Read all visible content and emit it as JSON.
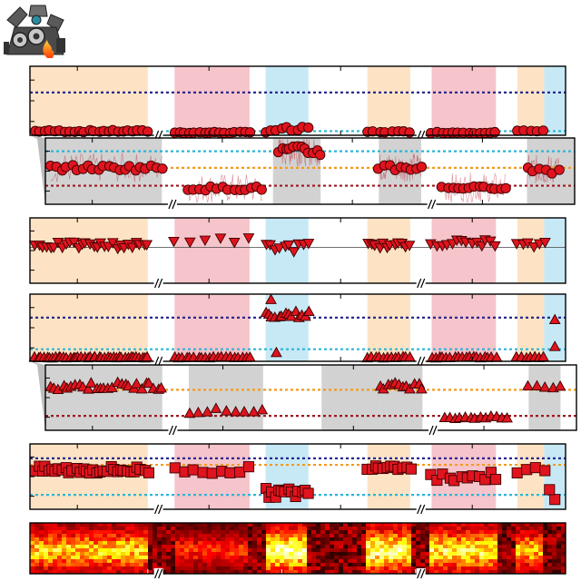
{
  "logo": {
    "icon": "robot-head-icon",
    "flame_color": "#ff5a1e"
  },
  "colors": {
    "band_orange": "#fde3c4",
    "band_red": "#f6c4cb",
    "band_blue": "#c7e9f6",
    "band_gray": "#d2d2d2",
    "marker_fill": "#e0141e",
    "marker_edge": "#3a0000",
    "navy_line": "#2a2a8e",
    "orange_line": "#f39a1e",
    "cyan_line": "#2ab6d6",
    "darkred_line": "#a01820",
    "trace": "#c03040"
  },
  "chart_data": [
    {
      "type": "scatter",
      "panel": "circles",
      "marker": "circle",
      "grid": false,
      "legend": "none",
      "axis_break_marks": 2,
      "xlim": [
        0,
        1
      ],
      "ylim": [
        0,
        1
      ],
      "shaded_segments": [
        {
          "x": [
            0,
            0.22
          ],
          "color": "orange"
        },
        {
          "x": [
            0.27,
            0.41
          ],
          "color": "red"
        },
        {
          "x": [
            0.44,
            0.52
          ],
          "color": "blue"
        },
        {
          "x": [
            0.63,
            0.71
          ],
          "color": "orange"
        },
        {
          "x": [
            0.75,
            0.87
          ],
          "color": "red"
        },
        {
          "x": [
            0.91,
            0.96
          ],
          "color": "orange"
        },
        {
          "x": [
            0.96,
            1.0
          ],
          "color": "blue"
        }
      ],
      "reference_lines": [
        {
          "y": 0.62,
          "color": "navy"
        },
        {
          "y": 0.06,
          "color": "cyan"
        }
      ],
      "segments": [
        {
          "x": [
            0.01,
            0.22
          ],
          "count": 24,
          "y_mean": 0.06,
          "y_spread": 0.015
        },
        {
          "x": [
            0.27,
            0.41
          ],
          "count": 16,
          "y_mean": 0.04,
          "y_spread": 0.01
        },
        {
          "x": [
            0.44,
            0.52
          ],
          "count": 9,
          "y_mean": 0.08,
          "y_spread": 0.04
        },
        {
          "x": [
            0.63,
            0.71
          ],
          "count": 8,
          "y_mean": 0.05,
          "y_spread": 0.01
        },
        {
          "x": [
            0.75,
            0.87
          ],
          "count": 13,
          "y_mean": 0.04,
          "y_spread": 0.01
        },
        {
          "x": [
            0.91,
            0.96
          ],
          "count": 5,
          "y_mean": 0.06,
          "y_spread": 0.01
        }
      ]
    },
    {
      "type": "scatter",
      "panel": "circles-inset",
      "marker": "circle",
      "background_trace": true,
      "grid": false,
      "legend": "none",
      "axis_break_marks": 2,
      "xlim": [
        0,
        1
      ],
      "ylim": [
        0,
        1
      ],
      "shaded_segments": [
        {
          "x": [
            0.0,
            0.22
          ],
          "color": "gray"
        },
        {
          "x": [
            0.43,
            0.52
          ],
          "color": "gray"
        },
        {
          "x": [
            0.63,
            0.71
          ],
          "color": "gray"
        },
        {
          "x": [
            0.91,
            1.0
          ],
          "color": "gray"
        }
      ],
      "reference_lines": [
        {
          "y": 0.8,
          "color": "cyan"
        },
        {
          "y": 0.55,
          "color": "orange"
        },
        {
          "y": 0.28,
          "color": "darkred"
        }
      ],
      "segments": [
        {
          "x": [
            0.01,
            0.22
          ],
          "count": 22,
          "y_mean": 0.55,
          "y_spread": 0.04
        },
        {
          "x": [
            0.27,
            0.41
          ],
          "count": 14,
          "y_mean": 0.24,
          "y_spread": 0.03
        },
        {
          "x": [
            0.44,
            0.52
          ],
          "count": 12,
          "y_mean": 0.8,
          "y_spread": 0.08
        },
        {
          "x": [
            0.63,
            0.71
          ],
          "count": 9,
          "y_mean": 0.56,
          "y_spread": 0.06
        },
        {
          "x": [
            0.75,
            0.87
          ],
          "count": 13,
          "y_mean": 0.25,
          "y_spread": 0.02
        },
        {
          "x": [
            0.91,
            0.97
          ],
          "count": 6,
          "y_mean": 0.52,
          "y_spread": 0.06
        }
      ]
    },
    {
      "type": "scatter",
      "panel": "down-triangles",
      "marker": "triangle-down",
      "grid": false,
      "legend": "none",
      "axis_break_marks": 2,
      "xlim": [
        0,
        1
      ],
      "ylim": [
        0,
        1
      ],
      "shaded_segments": [
        {
          "x": [
            0,
            0.22
          ],
          "color": "orange"
        },
        {
          "x": [
            0.27,
            0.41
          ],
          "color": "red"
        },
        {
          "x": [
            0.44,
            0.52
          ],
          "color": "blue"
        },
        {
          "x": [
            0.63,
            0.71
          ],
          "color": "orange"
        },
        {
          "x": [
            0.75,
            0.87
          ],
          "color": "red"
        },
        {
          "x": [
            0.91,
            0.96
          ],
          "color": "orange"
        },
        {
          "x": [
            0.96,
            1.0
          ],
          "color": "blue"
        }
      ],
      "reference_lines": [
        {
          "y": 0.55,
          "color": "gray"
        }
      ],
      "segments": [
        {
          "x": [
            0.01,
            0.22
          ],
          "count": 30,
          "y_mean": 0.58,
          "y_spread": 0.05
        },
        {
          "x": [
            0.27,
            0.41
          ],
          "count": 6,
          "y_mean": 0.66,
          "y_spread": 0.04
        },
        {
          "x": [
            0.44,
            0.52
          ],
          "count": 10,
          "y_mean": 0.55,
          "y_spread": 0.07
        },
        {
          "x": [
            0.63,
            0.71
          ],
          "count": 12,
          "y_mean": 0.58,
          "y_spread": 0.04
        },
        {
          "x": [
            0.75,
            0.87
          ],
          "count": 14,
          "y_mean": 0.62,
          "y_spread": 0.05
        },
        {
          "x": [
            0.91,
            0.96
          ],
          "count": 6,
          "y_mean": 0.58,
          "y_spread": 0.05
        }
      ]
    },
    {
      "type": "scatter",
      "panel": "up-triangles",
      "marker": "triangle-up",
      "grid": false,
      "legend": "none",
      "axis_break_marks": 2,
      "xlim": [
        0,
        1
      ],
      "ylim": [
        0,
        1
      ],
      "shaded_segments": [
        {
          "x": [
            0,
            0.22
          ],
          "color": "orange"
        },
        {
          "x": [
            0.27,
            0.41
          ],
          "color": "red"
        },
        {
          "x": [
            0.44,
            0.52
          ],
          "color": "blue"
        },
        {
          "x": [
            0.63,
            0.71
          ],
          "color": "orange"
        },
        {
          "x": [
            0.75,
            0.87
          ],
          "color": "red"
        },
        {
          "x": [
            0.91,
            0.96
          ],
          "color": "orange"
        },
        {
          "x": [
            0.96,
            1.0
          ],
          "color": "blue"
        }
      ],
      "reference_lines": [
        {
          "y": 0.65,
          "color": "navy"
        },
        {
          "y": 0.18,
          "color": "cyan"
        }
      ],
      "segments": [
        {
          "x": [
            0.01,
            0.22
          ],
          "count": 40,
          "y_mean": 0.06,
          "y_spread": 0.01
        },
        {
          "x": [
            0.27,
            0.41
          ],
          "count": 20,
          "y_mean": 0.06,
          "y_spread": 0.01
        },
        {
          "x": [
            0.44,
            0.52
          ],
          "count": 14,
          "y_mean": 0.7,
          "y_spread": 0.05
        },
        {
          "x": [
            0.63,
            0.71
          ],
          "count": 12,
          "y_mean": 0.06,
          "y_spread": 0.01
        },
        {
          "x": [
            0.75,
            0.87
          ],
          "count": 18,
          "y_mean": 0.06,
          "y_spread": 0.01
        },
        {
          "x": [
            0.91,
            0.96
          ],
          "count": 7,
          "y_mean": 0.06,
          "y_spread": 0.01
        }
      ],
      "outliers": [
        {
          "x": 0.45,
          "y": 0.92
        },
        {
          "x": 0.46,
          "y": 0.13
        },
        {
          "x": 0.98,
          "y": 0.62
        },
        {
          "x": 0.98,
          "y": 0.22
        }
      ]
    },
    {
      "type": "scatter",
      "panel": "up-triangles-inset",
      "marker": "triangle-up",
      "grid": false,
      "legend": "none",
      "axis_break_marks": 2,
      "xlim": [
        0,
        1
      ],
      "ylim": [
        0,
        1
      ],
      "shaded_segments": [
        {
          "x": [
            0,
            0.22
          ],
          "color": "gray"
        },
        {
          "x": [
            0.27,
            0.41
          ],
          "color": "gray"
        },
        {
          "x": [
            0.52,
            0.63
          ],
          "color": "gray"
        },
        {
          "x": [
            0.63,
            0.71
          ],
          "color": "gray"
        },
        {
          "x": [
            0.91,
            0.97
          ],
          "color": "gray"
        }
      ],
      "reference_lines": [
        {
          "y": 0.62,
          "color": "orange"
        },
        {
          "y": 0.22,
          "color": "darkred"
        }
      ],
      "segments": [
        {
          "x": [
            0.01,
            0.22
          ],
          "count": 28,
          "y_mean": 0.68,
          "y_spread": 0.06
        },
        {
          "x": [
            0.27,
            0.41
          ],
          "count": 9,
          "y_mean": 0.3,
          "y_spread": 0.04
        },
        {
          "x": [
            0.63,
            0.71
          ],
          "count": 12,
          "y_mean": 0.68,
          "y_spread": 0.05
        },
        {
          "x": [
            0.75,
            0.87
          ],
          "count": 13,
          "y_mean": 0.2,
          "y_spread": 0.02
        },
        {
          "x": [
            0.91,
            0.97
          ],
          "count": 5,
          "y_mean": 0.68,
          "y_spread": 0.04
        }
      ]
    },
    {
      "type": "scatter",
      "panel": "squares",
      "marker": "square",
      "grid": false,
      "legend": "none",
      "axis_break_marks": 2,
      "xlim": [
        0,
        1
      ],
      "ylim": [
        0,
        1
      ],
      "shaded_segments": [
        {
          "x": [
            0,
            0.22
          ],
          "color": "orange"
        },
        {
          "x": [
            0.27,
            0.41
          ],
          "color": "red"
        },
        {
          "x": [
            0.44,
            0.52
          ],
          "color": "blue"
        },
        {
          "x": [
            0.63,
            0.71
          ],
          "color": "orange"
        },
        {
          "x": [
            0.75,
            0.87
          ],
          "color": "red"
        },
        {
          "x": [
            0.91,
            0.96
          ],
          "color": "orange"
        },
        {
          "x": [
            0.96,
            1.0
          ],
          "color": "blue"
        }
      ],
      "reference_lines": [
        {
          "y": 0.78,
          "color": "navy"
        },
        {
          "y": 0.68,
          "color": "orange"
        },
        {
          "y": 0.22,
          "color": "cyan"
        }
      ],
      "segments": [
        {
          "x": [
            0.01,
            0.22
          ],
          "count": 34,
          "y_mean": 0.6,
          "y_spread": 0.06
        },
        {
          "x": [
            0.27,
            0.41
          ],
          "count": 9,
          "y_mean": 0.6,
          "y_spread": 0.06
        },
        {
          "x": [
            0.44,
            0.52
          ],
          "count": 14,
          "y_mean": 0.25,
          "y_spread": 0.07
        },
        {
          "x": [
            0.63,
            0.71
          ],
          "count": 12,
          "y_mean": 0.66,
          "y_spread": 0.05
        },
        {
          "x": [
            0.75,
            0.87
          ],
          "count": 12,
          "y_mean": 0.5,
          "y_spread": 0.07
        },
        {
          "x": [
            0.91,
            0.96
          ],
          "count": 4,
          "y_mean": 0.6,
          "y_spread": 0.05
        }
      ],
      "outliers": [
        {
          "x": 0.98,
          "y": 0.15
        },
        {
          "x": 0.97,
          "y": 0.3
        }
      ]
    },
    {
      "type": "heatmap",
      "panel": "spectrogram",
      "colormap": "hot",
      "xlim": [
        0,
        1
      ],
      "axis_break_marks": 2,
      "active_segments": [
        {
          "x": [
            0.0,
            0.22
          ],
          "intensity": 0.75
        },
        {
          "x": [
            0.27,
            0.41
          ],
          "intensity": 0.45
        },
        {
          "x": [
            0.44,
            0.52
          ],
          "intensity": 1.0
        },
        {
          "x": [
            0.63,
            0.71
          ],
          "intensity": 0.95
        },
        {
          "x": [
            0.75,
            0.87
          ],
          "intensity": 0.85
        },
        {
          "x": [
            0.91,
            0.96
          ],
          "intensity": 0.7
        }
      ]
    }
  ]
}
